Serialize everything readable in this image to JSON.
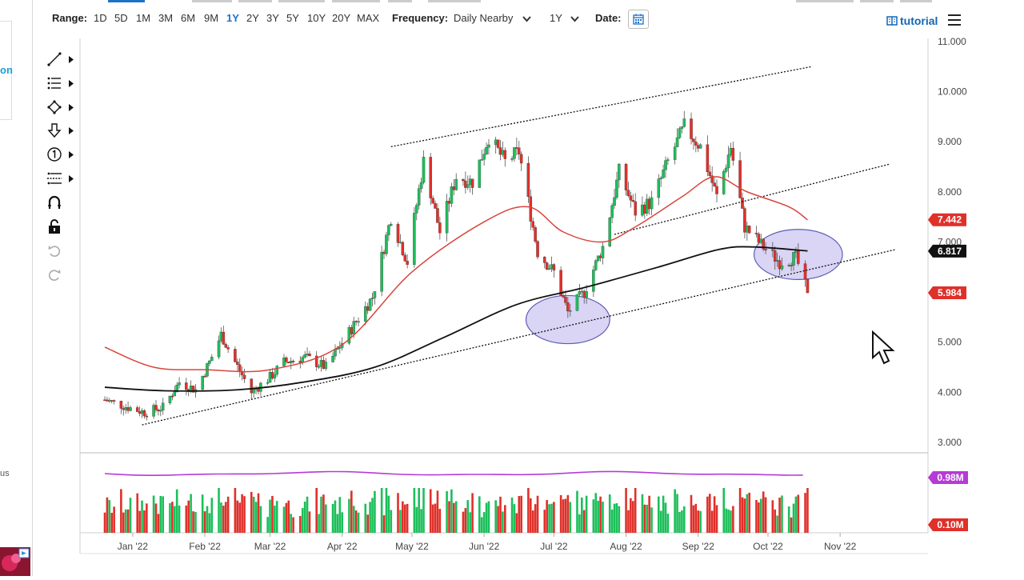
{
  "toolbar": {
    "range_label": "Range:",
    "ranges": [
      "1D",
      "5D",
      "1M",
      "3M",
      "6M",
      "9M",
      "1Y",
      "2Y",
      "3Y",
      "5Y",
      "10Y",
      "20Y",
      "MAX"
    ],
    "active_range": "1Y",
    "frequency_label": "Frequency:",
    "frequency_value": "Daily Nearby",
    "period_value": "1Y",
    "date_label": "Date:",
    "tutorial_label": "tutorial"
  },
  "left_panel": {
    "partial_text_1": "on",
    "partial_text_2": "us"
  },
  "drawing_tools": [
    {
      "name": "trendline-tool",
      "icon": "trendline-icon"
    },
    {
      "name": "fibonacci-tool",
      "icon": "fibonacci-icon"
    },
    {
      "name": "shape-tool",
      "icon": "shape-icon"
    },
    {
      "name": "arrow-tool",
      "icon": "arrow-down-icon"
    },
    {
      "name": "annotation-tool",
      "icon": "number-one-icon"
    },
    {
      "name": "measure-tool",
      "icon": "measure-icon"
    },
    {
      "name": "magnet-tool",
      "icon": "magnet-icon"
    },
    {
      "name": "lock-tool",
      "icon": "lock-icon"
    },
    {
      "name": "undo-tool",
      "icon": "undo-icon"
    },
    {
      "name": "redo-tool",
      "icon": "redo-icon"
    }
  ],
  "colors": {
    "up": "#1cbf5a",
    "down": "#e0302a",
    "ma_fast": "#d9453c",
    "ma_slow": "#111111",
    "volume_ma": "#b53bd6",
    "volume_badge": "#b53bd6",
    "price_badge_red": "#e0302a",
    "price_badge_black": "#111111",
    "ellipse_fill": "#c6bdf0",
    "ellipse_stroke": "#5a5fb0",
    "accent": "#1a73c8"
  },
  "chart_data": {
    "type": "candlestick",
    "price_axis": {
      "ticks": [
        "11.000",
        "10.000",
        "9.000",
        "8.000",
        "7.000",
        "6.000",
        "5.000",
        "4.000",
        "3.000"
      ],
      "ylim": [
        3.0,
        11.0
      ]
    },
    "x_axis": {
      "tick_labels": [
        "Jan '22",
        "Feb '22",
        "Mar '22",
        "Apr '22",
        "May '22",
        "Jun '22",
        "Jul '22",
        "Aug '22",
        "Sep '22",
        "Oct '22",
        "Nov '22"
      ]
    },
    "price_badges": [
      {
        "value": "7.442",
        "role": "moving-average-fast"
      },
      {
        "value": "6.817",
        "role": "moving-average-slow"
      },
      {
        "value": "5.984",
        "role": "last-price"
      }
    ],
    "volume_badges": [
      {
        "value": "0.98M",
        "role": "volume-moving-average"
      },
      {
        "value": "0.10M",
        "role": "volume-last"
      }
    ],
    "price_path": [
      [
        "2021-12-20",
        3.85
      ],
      [
        "2021-12-30",
        3.7
      ],
      [
        "2022-01-06",
        3.6
      ],
      [
        "2022-01-14",
        3.7
      ],
      [
        "2022-01-21",
        4.2
      ],
      [
        "2022-01-28",
        4.05
      ],
      [
        "2022-02-03",
        4.6
      ],
      [
        "2022-02-08",
        5.15
      ],
      [
        "2022-02-14",
        4.6
      ],
      [
        "2022-02-21",
        4.0
      ],
      [
        "2022-03-01",
        4.3
      ],
      [
        "2022-03-07",
        4.6
      ],
      [
        "2022-03-16",
        4.7
      ],
      [
        "2022-03-25",
        4.5
      ],
      [
        "2022-04-04",
        5.2
      ],
      [
        "2022-04-14",
        5.9
      ],
      [
        "2022-04-22",
        7.5
      ],
      [
        "2022-04-29",
        6.6
      ],
      [
        "2022-05-06",
        8.6
      ],
      [
        "2022-05-13",
        7.2
      ],
      [
        "2022-05-20",
        8.3
      ],
      [
        "2022-05-27",
        8.2
      ],
      [
        "2022-06-03",
        9.1
      ],
      [
        "2022-06-10",
        8.6
      ],
      [
        "2022-06-16",
        8.8
      ],
      [
        "2022-06-24",
        6.8
      ],
      [
        "2022-07-01",
        6.4
      ],
      [
        "2022-07-07",
        5.6
      ],
      [
        "2022-07-14",
        6.0
      ],
      [
        "2022-07-22",
        6.9
      ],
      [
        "2022-07-29",
        8.4
      ],
      [
        "2022-08-05",
        7.6
      ],
      [
        "2022-08-12",
        7.8
      ],
      [
        "2022-08-19",
        8.6
      ],
      [
        "2022-08-26",
        9.3
      ],
      [
        "2022-09-02",
        8.9
      ],
      [
        "2022-09-09",
        7.9
      ],
      [
        "2022-09-15",
        8.9
      ],
      [
        "2022-09-21",
        7.3
      ],
      [
        "2022-09-29",
        6.9
      ],
      [
        "2022-10-06",
        6.6
      ],
      [
        "2022-10-13",
        6.7
      ],
      [
        "2022-10-18",
        5.98
      ]
    ],
    "ma_fast_path": [
      [
        "2021-12-20",
        4.9
      ],
      [
        "2022-01-10",
        4.5
      ],
      [
        "2022-02-01",
        4.45
      ],
      [
        "2022-03-01",
        4.45
      ],
      [
        "2022-04-01",
        4.95
      ],
      [
        "2022-05-01",
        6.4
      ],
      [
        "2022-06-01",
        7.4
      ],
      [
        "2022-06-20",
        7.7
      ],
      [
        "2022-07-05",
        7.2
      ],
      [
        "2022-07-22",
        7.0
      ],
      [
        "2022-08-05",
        7.3
      ],
      [
        "2022-08-25",
        7.9
      ],
      [
        "2022-09-08",
        8.3
      ],
      [
        "2022-09-22",
        8.0
      ],
      [
        "2022-10-10",
        7.7
      ],
      [
        "2022-10-18",
        7.44
      ]
    ],
    "ma_slow_path": [
      [
        "2021-12-20",
        4.1
      ],
      [
        "2022-01-15",
        4.03
      ],
      [
        "2022-02-15",
        4.05
      ],
      [
        "2022-03-15",
        4.2
      ],
      [
        "2022-04-15",
        4.5
      ],
      [
        "2022-05-15",
        5.1
      ],
      [
        "2022-06-15",
        5.75
      ],
      [
        "2022-07-15",
        6.1
      ],
      [
        "2022-08-15",
        6.5
      ],
      [
        "2022-09-10",
        6.85
      ],
      [
        "2022-09-25",
        6.9
      ],
      [
        "2022-10-18",
        6.82
      ]
    ],
    "channel_lines": [
      {
        "start": [
          "2022-04-22",
          8.9
        ],
        "end": [
          "2022-10-20",
          10.5
        ]
      },
      {
        "start": [
          "2022-07-27",
          7.15
        ],
        "end": [
          "2022-11-22",
          8.55
        ]
      },
      {
        "start": [
          "2022-01-05",
          3.35
        ],
        "end": [
          "2022-11-25",
          6.85
        ]
      }
    ],
    "highlight_ellipses": [
      {
        "center": [
          "2022-07-07",
          5.45
        ],
        "semi_days": 18,
        "semi_price": 0.48
      },
      {
        "center": [
          "2022-10-14",
          6.75
        ],
        "semi_days": 19,
        "semi_price": 0.5
      }
    ],
    "volume_ma_level": 0.98
  }
}
